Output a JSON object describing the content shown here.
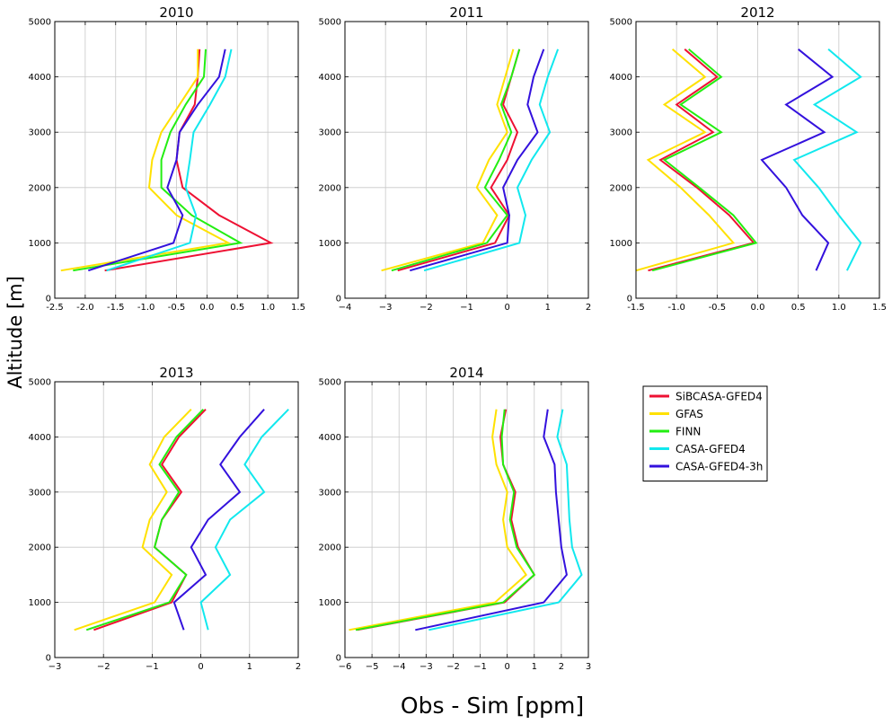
{
  "figure": {
    "ylabel": "Altitude [m]",
    "xlabel": "Obs - Sim [ppm]"
  },
  "legend": {
    "entries": [
      {
        "name": "SiBCASA-GFED4",
        "color": "#ee1133"
      },
      {
        "name": "GFAS",
        "color": "#ffe100"
      },
      {
        "name": "FINN",
        "color": "#22ee11"
      },
      {
        "name": "CASA-GFED4",
        "color": "#11e8ee"
      },
      {
        "name": "CASA-GFED4-3h",
        "color": "#3311dd"
      }
    ]
  },
  "chart_data": [
    {
      "type": "line",
      "title": "2010",
      "xlim": [
        -2.5,
        1.5
      ],
      "ylim": [
        0,
        5000
      ],
      "xticks": [
        -2.5,
        -2.0,
        -1.5,
        -1.0,
        -0.5,
        0.0,
        0.5,
        1.0,
        1.5
      ],
      "xtick_labels": [
        "-2.5",
        "-2.0",
        "-1.5",
        "-1.0",
        "-0.5",
        "0.0",
        "0.5",
        "1.0",
        "1.5"
      ],
      "yticks": [
        0,
        1000,
        2000,
        3000,
        4000,
        5000
      ],
      "ytick_labels": [
        "0",
        "1000",
        "2000",
        "3000",
        "4000",
        "5000"
      ],
      "grid": true,
      "y": [
        500,
        1000,
        1500,
        2000,
        2500,
        3000,
        3500,
        4000,
        4500
      ],
      "series": [
        {
          "name": "SiBCASA-GFED4",
          "color": "#ee1133",
          "values": [
            -1.68,
            1.05,
            0.2,
            -0.4,
            -0.5,
            -0.45,
            -0.2,
            -0.15,
            -0.12
          ]
        },
        {
          "name": "GFAS",
          "color": "#ffe100",
          "values": [
            -2.4,
            0.35,
            -0.5,
            -0.95,
            -0.9,
            -0.75,
            -0.45,
            -0.15,
            -0.15
          ]
        },
        {
          "name": "FINN",
          "color": "#22ee11",
          "values": [
            -2.2,
            0.55,
            -0.25,
            -0.75,
            -0.75,
            -0.6,
            -0.35,
            -0.05,
            -0.02
          ]
        },
        {
          "name": "CASA-GFED4",
          "color": "#11e8ee",
          "values": [
            -1.65,
            -0.28,
            -0.18,
            -0.35,
            -0.28,
            -0.22,
            0.05,
            0.3,
            0.4
          ]
        },
        {
          "name": "CASA-GFED4-3h",
          "color": "#3311dd",
          "values": [
            -1.95,
            -0.55,
            -0.4,
            -0.65,
            -0.5,
            -0.45,
            -0.15,
            0.2,
            0.3
          ]
        }
      ]
    },
    {
      "type": "line",
      "title": "2011",
      "xlim": [
        -4,
        2
      ],
      "ylim": [
        0,
        5000
      ],
      "xticks": [
        -4,
        -3,
        -2,
        -1,
        0,
        1,
        2
      ],
      "xtick_labels": [
        "−4",
        "−3",
        "−2",
        "−1",
        "0",
        "1",
        "2"
      ],
      "yticks": [
        0,
        1000,
        2000,
        3000,
        4000,
        5000
      ],
      "ytick_labels": [
        "0",
        "1000",
        "2000",
        "3000",
        "4000",
        "5000"
      ],
      "grid": true,
      "y": [
        500,
        1000,
        1500,
        2000,
        2500,
        3000,
        3500,
        4000,
        4500
      ],
      "series": [
        {
          "name": "SiBCASA-GFED4",
          "color": "#ee1133",
          "values": [
            -2.7,
            -0.3,
            0.05,
            -0.4,
            0.0,
            0.25,
            -0.1,
            0.1,
            0.3
          ]
        },
        {
          "name": "GFAS",
          "color": "#ffe100",
          "values": [
            -3.1,
            -0.6,
            -0.25,
            -0.75,
            -0.45,
            0.0,
            -0.25,
            -0.05,
            0.15
          ]
        },
        {
          "name": "FINN",
          "color": "#22ee11",
          "values": [
            -2.85,
            -0.5,
            0.0,
            -0.55,
            -0.2,
            0.1,
            -0.15,
            0.1,
            0.3
          ]
        },
        {
          "name": "CASA-GFED4",
          "color": "#11e8ee",
          "values": [
            -2.05,
            0.3,
            0.45,
            0.25,
            0.6,
            1.05,
            0.8,
            1.0,
            1.25
          ]
        },
        {
          "name": "CASA-GFED4-3h",
          "color": "#3311dd",
          "values": [
            -2.4,
            0.0,
            0.05,
            -0.1,
            0.25,
            0.75,
            0.5,
            0.65,
            0.9
          ]
        }
      ]
    },
    {
      "type": "line",
      "title": "2012",
      "xlim": [
        -1.5,
        1.5
      ],
      "ylim": [
        0,
        5000
      ],
      "xticks": [
        -1.5,
        -1.0,
        -0.5,
        0.0,
        0.5,
        1.0,
        1.5
      ],
      "xtick_labels": [
        "-1.5",
        "-1.0",
        "-0.5",
        "0.0",
        "0.5",
        "1.0",
        "1.5"
      ],
      "yticks": [
        0,
        1000,
        2000,
        3000,
        4000,
        5000
      ],
      "ytick_labels": [
        "0",
        "1000",
        "2000",
        "3000",
        "4000",
        "5000"
      ],
      "grid": true,
      "y": [
        500,
        1000,
        1500,
        2000,
        2500,
        3000,
        3500,
        4000,
        4500
      ],
      "series": [
        {
          "name": "SiBCASA-GFED4",
          "color": "#ee1133",
          "values": [
            -1.35,
            -0.05,
            -0.35,
            -0.75,
            -1.2,
            -0.55,
            -1.0,
            -0.5,
            -0.9
          ]
        },
        {
          "name": "GFAS",
          "color": "#ffe100",
          "values": [
            -1.5,
            -0.3,
            -0.6,
            -0.95,
            -1.35,
            -0.65,
            -1.15,
            -0.65,
            -1.05
          ]
        },
        {
          "name": "FINN",
          "color": "#22ee11",
          "values": [
            -1.3,
            -0.02,
            -0.3,
            -0.72,
            -1.15,
            -0.45,
            -0.95,
            -0.45,
            -0.85
          ]
        },
        {
          "name": "CASA-GFED4",
          "color": "#11e8ee",
          "values": [
            1.1,
            1.27,
            1.0,
            0.75,
            0.45,
            1.22,
            0.7,
            1.27,
            0.87
          ]
        },
        {
          "name": "CASA-GFED4-3h",
          "color": "#3311dd",
          "values": [
            0.72,
            0.87,
            0.55,
            0.35,
            0.05,
            0.82,
            0.35,
            0.92,
            0.5
          ]
        }
      ]
    },
    {
      "type": "line",
      "title": "2013",
      "xlim": [
        -3,
        2
      ],
      "ylim": [
        0,
        5000
      ],
      "xticks": [
        -3,
        -2,
        -1,
        0,
        1,
        2
      ],
      "xtick_labels": [
        "−3",
        "−2",
        "−1",
        "0",
        "1",
        "2"
      ],
      "yticks": [
        0,
        1000,
        2000,
        3000,
        4000,
        5000
      ],
      "ytick_labels": [
        "0",
        "1000",
        "2000",
        "3000",
        "4000",
        "5000"
      ],
      "grid": true,
      "y": [
        500,
        1000,
        1500,
        2000,
        2500,
        3000,
        3500,
        4000,
        4500
      ],
      "series": [
        {
          "name": "SiBCASA-GFED4",
          "color": "#ee1133",
          "values": [
            -2.2,
            -0.6,
            -0.3,
            -0.95,
            -0.8,
            -0.4,
            -0.8,
            -0.45,
            0.1
          ]
        },
        {
          "name": "GFAS",
          "color": "#ffe100",
          "values": [
            -2.6,
            -0.95,
            -0.6,
            -1.2,
            -1.05,
            -0.7,
            -1.05,
            -0.75,
            -0.2
          ]
        },
        {
          "name": "FINN",
          "color": "#22ee11",
          "values": [
            -2.35,
            -0.65,
            -0.3,
            -0.95,
            -0.8,
            -0.45,
            -0.85,
            -0.5,
            0.05
          ]
        },
        {
          "name": "CASA-GFED4",
          "color": "#11e8ee",
          "values": [
            0.15,
            0.0,
            0.6,
            0.3,
            0.6,
            1.3,
            0.9,
            1.25,
            1.8
          ]
        },
        {
          "name": "CASA-GFED4-3h",
          "color": "#3311dd",
          "values": [
            -0.35,
            -0.55,
            0.1,
            -0.2,
            0.15,
            0.8,
            0.4,
            0.8,
            1.3
          ]
        }
      ]
    },
    {
      "type": "line",
      "title": "2014",
      "xlim": [
        -6,
        3
      ],
      "ylim": [
        0,
        5000
      ],
      "xticks": [
        -6,
        -5,
        -4,
        -3,
        -2,
        -1,
        0,
        1,
        2,
        3
      ],
      "xtick_labels": [
        "−6",
        "−5",
        "−4",
        "−3",
        "−2",
        "−1",
        "0",
        "1",
        "2",
        "3"
      ],
      "yticks": [
        0,
        1000,
        2000,
        3000,
        4000,
        5000
      ],
      "ytick_labels": [
        "0",
        "1000",
        "2000",
        "3000",
        "4000",
        "5000"
      ],
      "grid": true,
      "y": [
        500,
        1000,
        1500,
        2000,
        2500,
        3000,
        3500,
        4000,
        4500
      ],
      "series": [
        {
          "name": "SiBCASA-GFED4",
          "color": "#ee1133",
          "values": [
            -5.55,
            -0.1,
            1.0,
            0.4,
            0.15,
            0.3,
            -0.15,
            -0.25,
            -0.05
          ]
        },
        {
          "name": "GFAS",
          "color": "#ffe100",
          "values": [
            -5.85,
            -0.45,
            0.7,
            0.0,
            -0.15,
            0.0,
            -0.4,
            -0.55,
            -0.4
          ]
        },
        {
          "name": "FINN",
          "color": "#22ee11",
          "values": [
            -5.6,
            -0.15,
            1.0,
            0.35,
            0.1,
            0.25,
            -0.15,
            -0.2,
            -0.1
          ]
        },
        {
          "name": "CASA-GFED4",
          "color": "#11e8ee",
          "values": [
            -2.9,
            1.9,
            2.75,
            2.4,
            2.3,
            2.25,
            2.2,
            1.85,
            2.05
          ]
        },
        {
          "name": "CASA-GFED4-3h",
          "color": "#3311dd",
          "values": [
            -3.4,
            1.35,
            2.2,
            2.0,
            1.9,
            1.8,
            1.75,
            1.35,
            1.5
          ]
        }
      ]
    }
  ]
}
